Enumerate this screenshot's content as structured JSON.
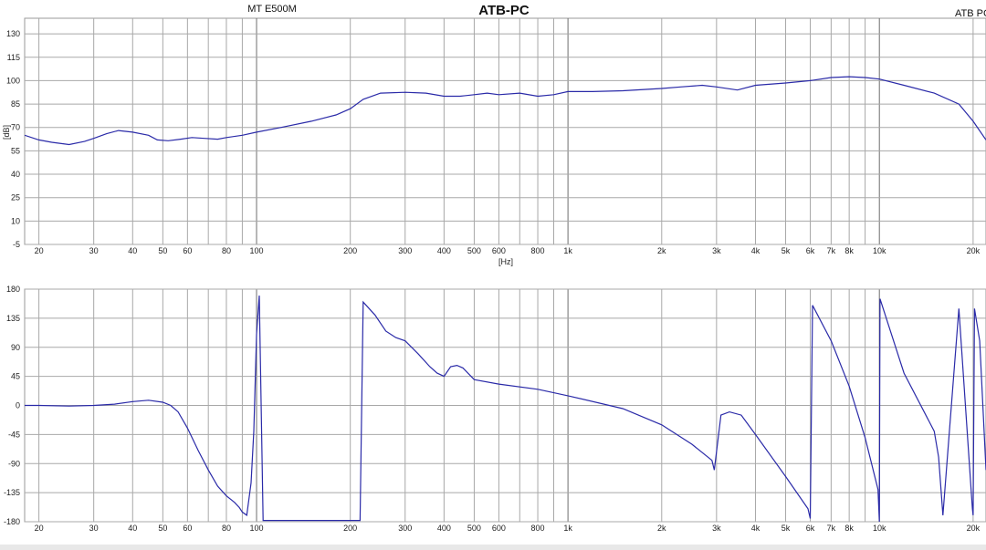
{
  "chart_data": [
    {
      "type": "line",
      "title": "ATB-PC",
      "subtitle_left": "MT E500M",
      "subtitle_right": "ATB PC",
      "xlabel": "[Hz]",
      "ylabel": "[dB]",
      "xscale": "log",
      "xlim": [
        18,
        22000
      ],
      "ylim": [
        -5,
        140
      ],
      "grid": true,
      "yticks": [
        130,
        115,
        100,
        85,
        70,
        55,
        40,
        25,
        10,
        -5
      ],
      "xticks": [
        {
          "v": 20,
          "label": "20"
        },
        {
          "v": 30,
          "label": "30"
        },
        {
          "v": 40,
          "label": "40"
        },
        {
          "v": 50,
          "label": "50"
        },
        {
          "v": 60,
          "label": "60"
        },
        {
          "v": 80,
          "label": "80"
        },
        {
          "v": 100,
          "label": "100"
        },
        {
          "v": 200,
          "label": "200"
        },
        {
          "v": 300,
          "label": "300"
        },
        {
          "v": 400,
          "label": "400"
        },
        {
          "v": 500,
          "label": "500"
        },
        {
          "v": 600,
          "label": "600"
        },
        {
          "v": 800,
          "label": "800"
        },
        {
          "v": 1000,
          "label": "1k"
        },
        {
          "v": 2000,
          "label": "2k"
        },
        {
          "v": 3000,
          "label": "3k"
        },
        {
          "v": 4000,
          "label": "4k"
        },
        {
          "v": 5000,
          "label": "5k"
        },
        {
          "v": 6000,
          "label": "6k"
        },
        {
          "v": 7000,
          "label": "7k"
        },
        {
          "v": 8000,
          "label": "8k"
        },
        {
          "v": 10000,
          "label": "10k"
        },
        {
          "v": 20000,
          "label": "20k"
        }
      ],
      "series": [
        {
          "color": "#2a2aa8",
          "x": [
            18,
            20,
            22,
            25,
            28,
            30,
            33,
            36,
            40,
            45,
            48,
            52,
            57,
            62,
            68,
            75,
            80,
            90,
            100,
            120,
            150,
            180,
            200,
            220,
            250,
            300,
            350,
            400,
            450,
            500,
            550,
            600,
            700,
            800,
            900,
            1000,
            1200,
            1500,
            2000,
            2300,
            2700,
            3000,
            3500,
            4000,
            5000,
            6000,
            7000,
            8000,
            9000,
            10000,
            12000,
            15000,
            18000,
            20000,
            22000
          ],
          "y": [
            65,
            62,
            60.5,
            59,
            61,
            63,
            66,
            68,
            67,
            65,
            62,
            61.5,
            62.5,
            63.5,
            63,
            62.5,
            63.5,
            65,
            67,
            70,
            74,
            78,
            82,
            88,
            92,
            92.5,
            92,
            90,
            90,
            91,
            92,
            91,
            92,
            90,
            91,
            93,
            93,
            93.5,
            95,
            96,
            97,
            96,
            94,
            97,
            98.5,
            100,
            102,
            102.5,
            102,
            101,
            97,
            92,
            85,
            74,
            62
          ]
        }
      ]
    },
    {
      "type": "line",
      "title": "",
      "xlabel": "",
      "ylabel": "",
      "xscale": "log",
      "xlim": [
        18,
        22000
      ],
      "ylim": [
        -180,
        180
      ],
      "grid": true,
      "yticks": [
        180,
        135,
        90,
        45,
        0,
        -45,
        -90,
        -135,
        -180
      ],
      "xticks": [
        {
          "v": 20,
          "label": "20"
        },
        {
          "v": 30,
          "label": "30"
        },
        {
          "v": 40,
          "label": "40"
        },
        {
          "v": 50,
          "label": "50"
        },
        {
          "v": 60,
          "label": "60"
        },
        {
          "v": 80,
          "label": "80"
        },
        {
          "v": 100,
          "label": "100"
        },
        {
          "v": 200,
          "label": "200"
        },
        {
          "v": 300,
          "label": "300"
        },
        {
          "v": 400,
          "label": "400"
        },
        {
          "v": 500,
          "label": "500"
        },
        {
          "v": 600,
          "label": "600"
        },
        {
          "v": 800,
          "label": "800"
        },
        {
          "v": 1000,
          "label": "1k"
        },
        {
          "v": 2000,
          "label": "2k"
        },
        {
          "v": 3000,
          "label": "3k"
        },
        {
          "v": 4000,
          "label": "4k"
        },
        {
          "v": 5000,
          "label": "5k"
        },
        {
          "v": 6000,
          "label": "6k"
        },
        {
          "v": 7000,
          "label": "7k"
        },
        {
          "v": 8000,
          "label": "8k"
        },
        {
          "v": 10000,
          "label": "10k"
        },
        {
          "v": 20000,
          "label": "20k"
        }
      ],
      "series": [
        {
          "color": "#2a2aa8",
          "x": [
            18,
            20,
            25,
            30,
            35,
            40,
            45,
            50,
            53,
            56,
            60,
            65,
            70,
            75,
            80,
            85,
            88,
            90,
            93,
            96,
            98,
            100,
            102,
            105,
            110,
            190,
            205,
            215,
            220,
            240,
            260,
            280,
            300,
            330,
            360,
            380,
            400,
            420,
            440,
            460,
            500,
            600,
            800,
            1000,
            1500,
            2000,
            2500,
            2900,
            2950,
            3100,
            3300,
            3600,
            4000,
            5000,
            5900,
            6000,
            6100,
            7000,
            8000,
            9000,
            9900,
            10000,
            10050,
            12000,
            15000,
            15500,
            16000,
            18000,
            19900,
            20000,
            20200,
            21000,
            22000
          ],
          "y": [
            0,
            0,
            -1,
            0,
            2,
            6,
            8,
            5,
            0,
            -10,
            -35,
            -70,
            -100,
            -125,
            -140,
            -150,
            -158,
            -165,
            -170,
            -120,
            -40,
            110,
            170,
            -178,
            -178,
            -178,
            -178,
            -178,
            160,
            140,
            115,
            105,
            100,
            80,
            60,
            50,
            45,
            60,
            62,
            58,
            40,
            33,
            25,
            15,
            -5,
            -30,
            -60,
            -85,
            -100,
            -15,
            -10,
            -15,
            -45,
            -110,
            -160,
            -175,
            155,
            100,
            30,
            -50,
            -130,
            -180,
            165,
            50,
            -40,
            -80,
            -170,
            150,
            -160,
            -170,
            150,
            100,
            -100
          ]
        }
      ]
    }
  ]
}
